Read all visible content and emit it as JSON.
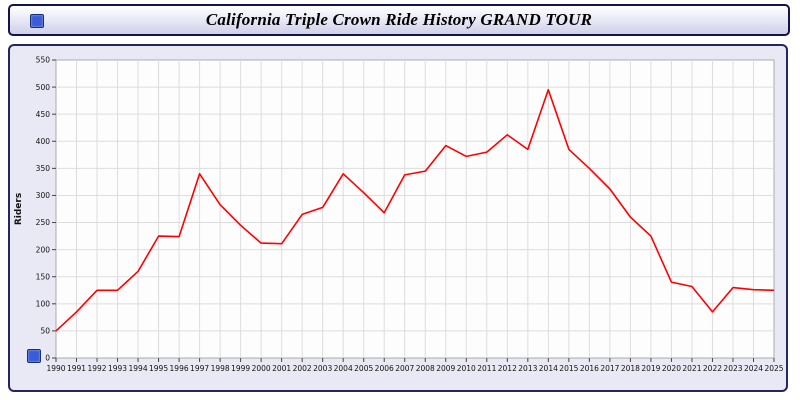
{
  "header": {
    "title": "California Triple Crown Ride History GRAND TOUR"
  },
  "icons": {
    "header_square": "blue-square-icon",
    "axis_square": "blue-square-icon"
  },
  "colors": {
    "panel_background": "#e9e9f5",
    "panel_border": "#26265e",
    "title_border": "#14144b",
    "line_color": "#ff0000",
    "grid_color": "#dddddd",
    "plot_background": "#fdfdfd",
    "blue_square": "#3c5bd6"
  },
  "chart_data": {
    "type": "line",
    "title": "California Triple Crown Ride History GRAND TOUR",
    "xlabel": "",
    "ylabel": "Riders",
    "ylim": [
      0,
      550
    ],
    "ytick_step": 50,
    "grid": true,
    "legend": "none",
    "line_color": "#ff0000",
    "categories": [
      "1990",
      "1991",
      "1992",
      "1993",
      "1994",
      "1995",
      "1996",
      "1997",
      "1998",
      "1999",
      "2000",
      "2001",
      "2002",
      "2003",
      "2004",
      "2005",
      "2006",
      "2007",
      "2008",
      "2009",
      "2010",
      "2011",
      "2012",
      "2013",
      "2014",
      "2015",
      "2016",
      "2017",
      "2018",
      "2019",
      "2020",
      "2021",
      "2022",
      "2023",
      "2024",
      "2025"
    ],
    "series": [
      {
        "name": "Riders",
        "values": [
          50,
          85,
          125,
          125,
          160,
          225,
          224,
          340,
          283,
          245,
          212,
          211,
          265,
          278,
          340,
          305,
          268,
          338,
          345,
          392,
          372,
          380,
          412,
          385,
          495,
          385,
          350,
          312,
          260,
          225,
          140,
          132,
          85,
          130,
          126,
          125
        ]
      }
    ]
  }
}
